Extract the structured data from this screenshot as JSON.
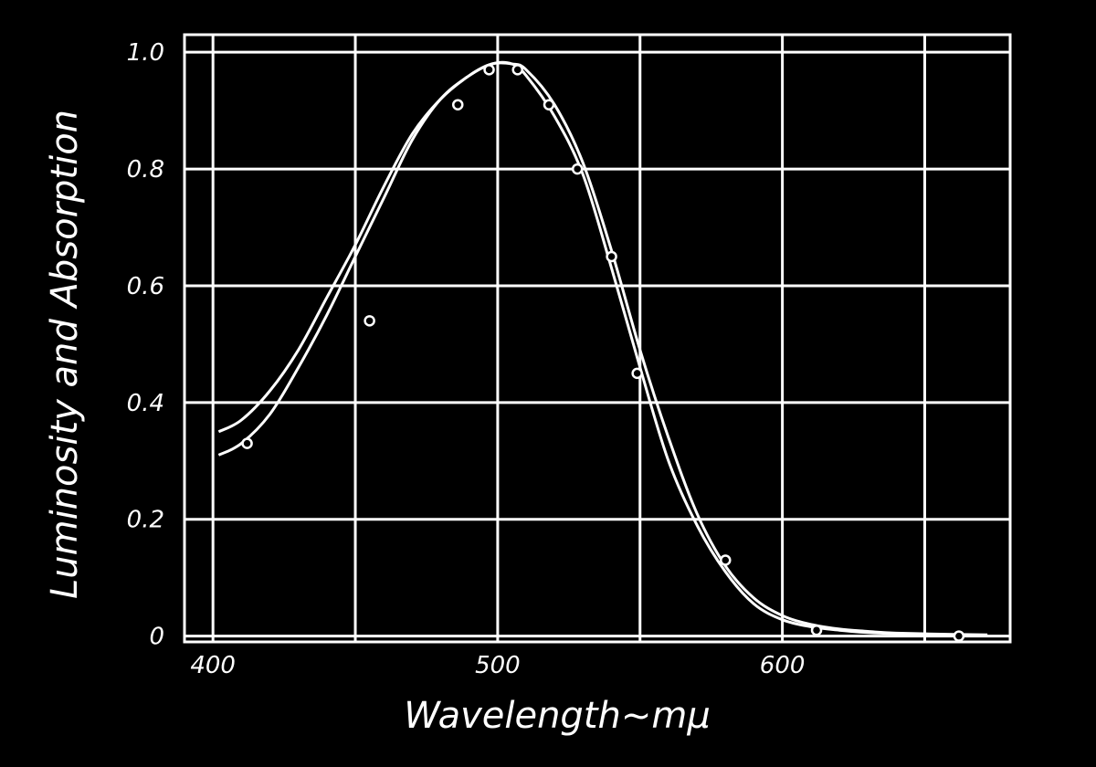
{
  "chart_data": {
    "type": "line",
    "title": "",
    "xlabel": "Wavelength~mμ",
    "ylabel": "Luminosity and Absorption",
    "xlim": [
      390,
      680
    ],
    "ylim": [
      -0.01,
      1.03
    ],
    "x_ticks": [
      400,
      500,
      600
    ],
    "x_tick_labels": [
      "400",
      "500",
      "600"
    ],
    "y_ticks": [
      0,
      0.2,
      0.4,
      0.6,
      0.8,
      1.0
    ],
    "y_tick_labels": [
      "0",
      "0.2",
      "0.4",
      "0.6",
      "0.8",
      "1.0"
    ],
    "grid": true,
    "legend": "none",
    "colors": {
      "background": "#000000",
      "ink": "#ffffff"
    },
    "series": [
      {
        "type": "line",
        "x": [
          402,
          410,
          420,
          430,
          440,
          450,
          460,
          470,
          480,
          490,
          498,
          505,
          510,
          520,
          530,
          540,
          550,
          560,
          570,
          580,
          590,
          600,
          610,
          620,
          630,
          640,
          660,
          672
        ],
        "values": [
          0.35,
          0.37,
          0.42,
          0.49,
          0.58,
          0.67,
          0.77,
          0.86,
          0.92,
          0.96,
          0.98,
          0.98,
          0.97,
          0.91,
          0.81,
          0.66,
          0.49,
          0.34,
          0.21,
          0.12,
          0.065,
          0.035,
          0.02,
          0.012,
          0.008,
          0.005,
          0.003,
          0.002
        ]
      },
      {
        "type": "line",
        "x": [
          402,
          410,
          420,
          430,
          440,
          450,
          460,
          470,
          480,
          490,
          498,
          505,
          510,
          520,
          530,
          540,
          550,
          560,
          570,
          580,
          590,
          600,
          610,
          620,
          630,
          640,
          660,
          672
        ],
        "values": [
          0.31,
          0.33,
          0.38,
          0.46,
          0.55,
          0.65,
          0.75,
          0.85,
          0.92,
          0.96,
          0.98,
          0.98,
          0.96,
          0.89,
          0.79,
          0.63,
          0.46,
          0.3,
          0.19,
          0.11,
          0.055,
          0.028,
          0.016,
          0.01,
          0.006,
          0.004,
          0.002,
          0.001
        ]
      },
      {
        "type": "scatter",
        "x": [
          412,
          455,
          486,
          497,
          507,
          518,
          528,
          540,
          549,
          580,
          612,
          662
        ],
        "values": [
          0.33,
          0.54,
          0.91,
          0.97,
          0.97,
          0.91,
          0.8,
          0.65,
          0.45,
          0.13,
          0.01,
          0.0
        ]
      }
    ]
  }
}
